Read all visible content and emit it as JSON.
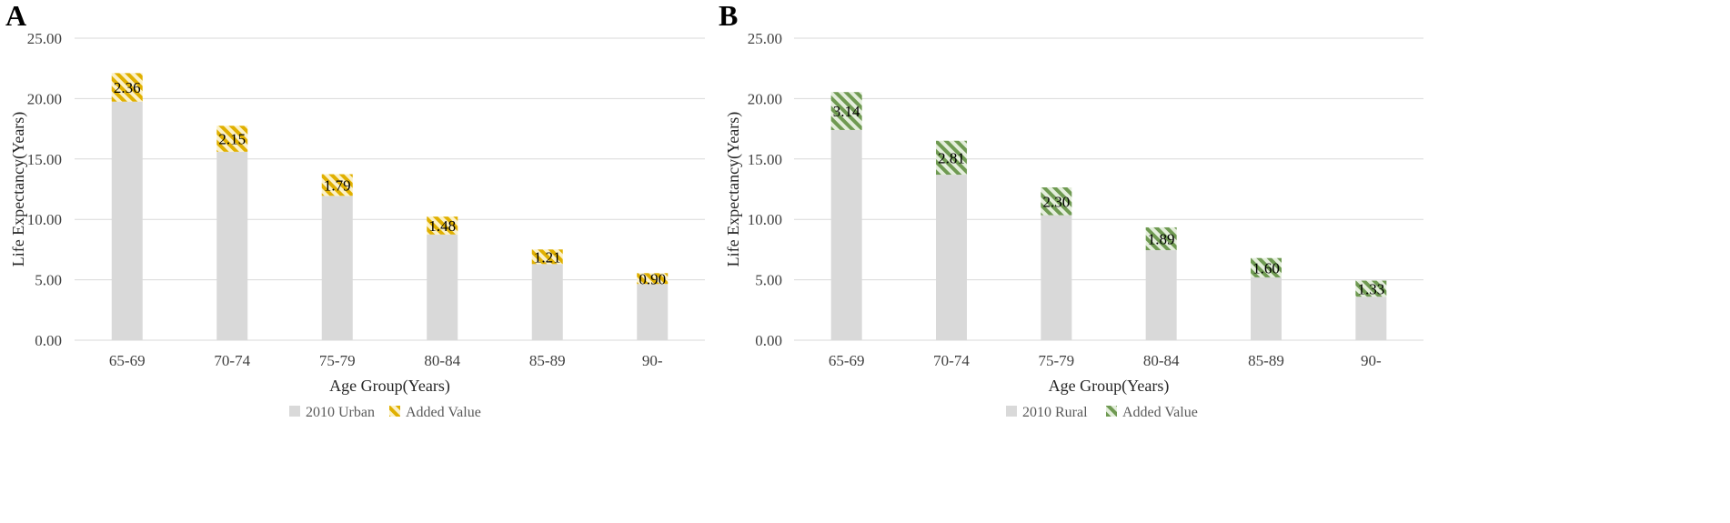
{
  "chart_data": [
    {
      "panel": "A",
      "type": "bar",
      "stacked": true,
      "categories": [
        "65-69",
        "70-74",
        "75-79",
        "80-84",
        "85-89",
        "90-"
      ],
      "series": [
        {
          "name": "2010 Urban",
          "values": [
            19.75,
            15.6,
            11.95,
            8.75,
            6.3,
            4.65
          ],
          "color": "#d9d9d9"
        },
        {
          "name": "Added Value",
          "values": [
            2.36,
            2.15,
            1.79,
            1.48,
            1.21,
            0.9
          ],
          "labels": [
            "2.36",
            "2.15",
            "1.79",
            "1.48",
            "1.21",
            "0.90"
          ],
          "color": "#e6b800",
          "pattern": "diagonal-hatch"
        }
      ],
      "xlabel": "Age Group(Years)",
      "ylabel": "Life Expectancy(Years)",
      "yticks": [
        "0.00",
        "5.00",
        "10.00",
        "15.00",
        "20.00",
        "25.00"
      ],
      "ylim": [
        0,
        25
      ],
      "grid": true,
      "legend_position": "bottom"
    },
    {
      "panel": "B",
      "type": "bar",
      "stacked": true,
      "categories": [
        "65-69",
        "70-74",
        "75-79",
        "80-84",
        "85-89",
        "90-"
      ],
      "series": [
        {
          "name": "2010 Rural",
          "values": [
            17.4,
            13.7,
            10.35,
            7.45,
            5.2,
            3.6
          ],
          "color": "#d9d9d9"
        },
        {
          "name": "Added Value",
          "values": [
            3.14,
            2.81,
            2.3,
            1.89,
            1.6,
            1.33
          ],
          "labels": [
            "3.14",
            "2.81",
            "2.30",
            "1.89",
            "1.60",
            "1.33"
          ],
          "color": "#70a050",
          "pattern": "diagonal-hatch"
        }
      ],
      "xlabel": "Age Group(Years)",
      "ylabel": "Life Expectancy(Years)",
      "yticks": [
        "0.00",
        "5.00",
        "10.00",
        "15.00",
        "20.00",
        "25.00"
      ],
      "ylim": [
        0,
        25
      ],
      "grid": true,
      "legend_position": "bottom"
    }
  ]
}
